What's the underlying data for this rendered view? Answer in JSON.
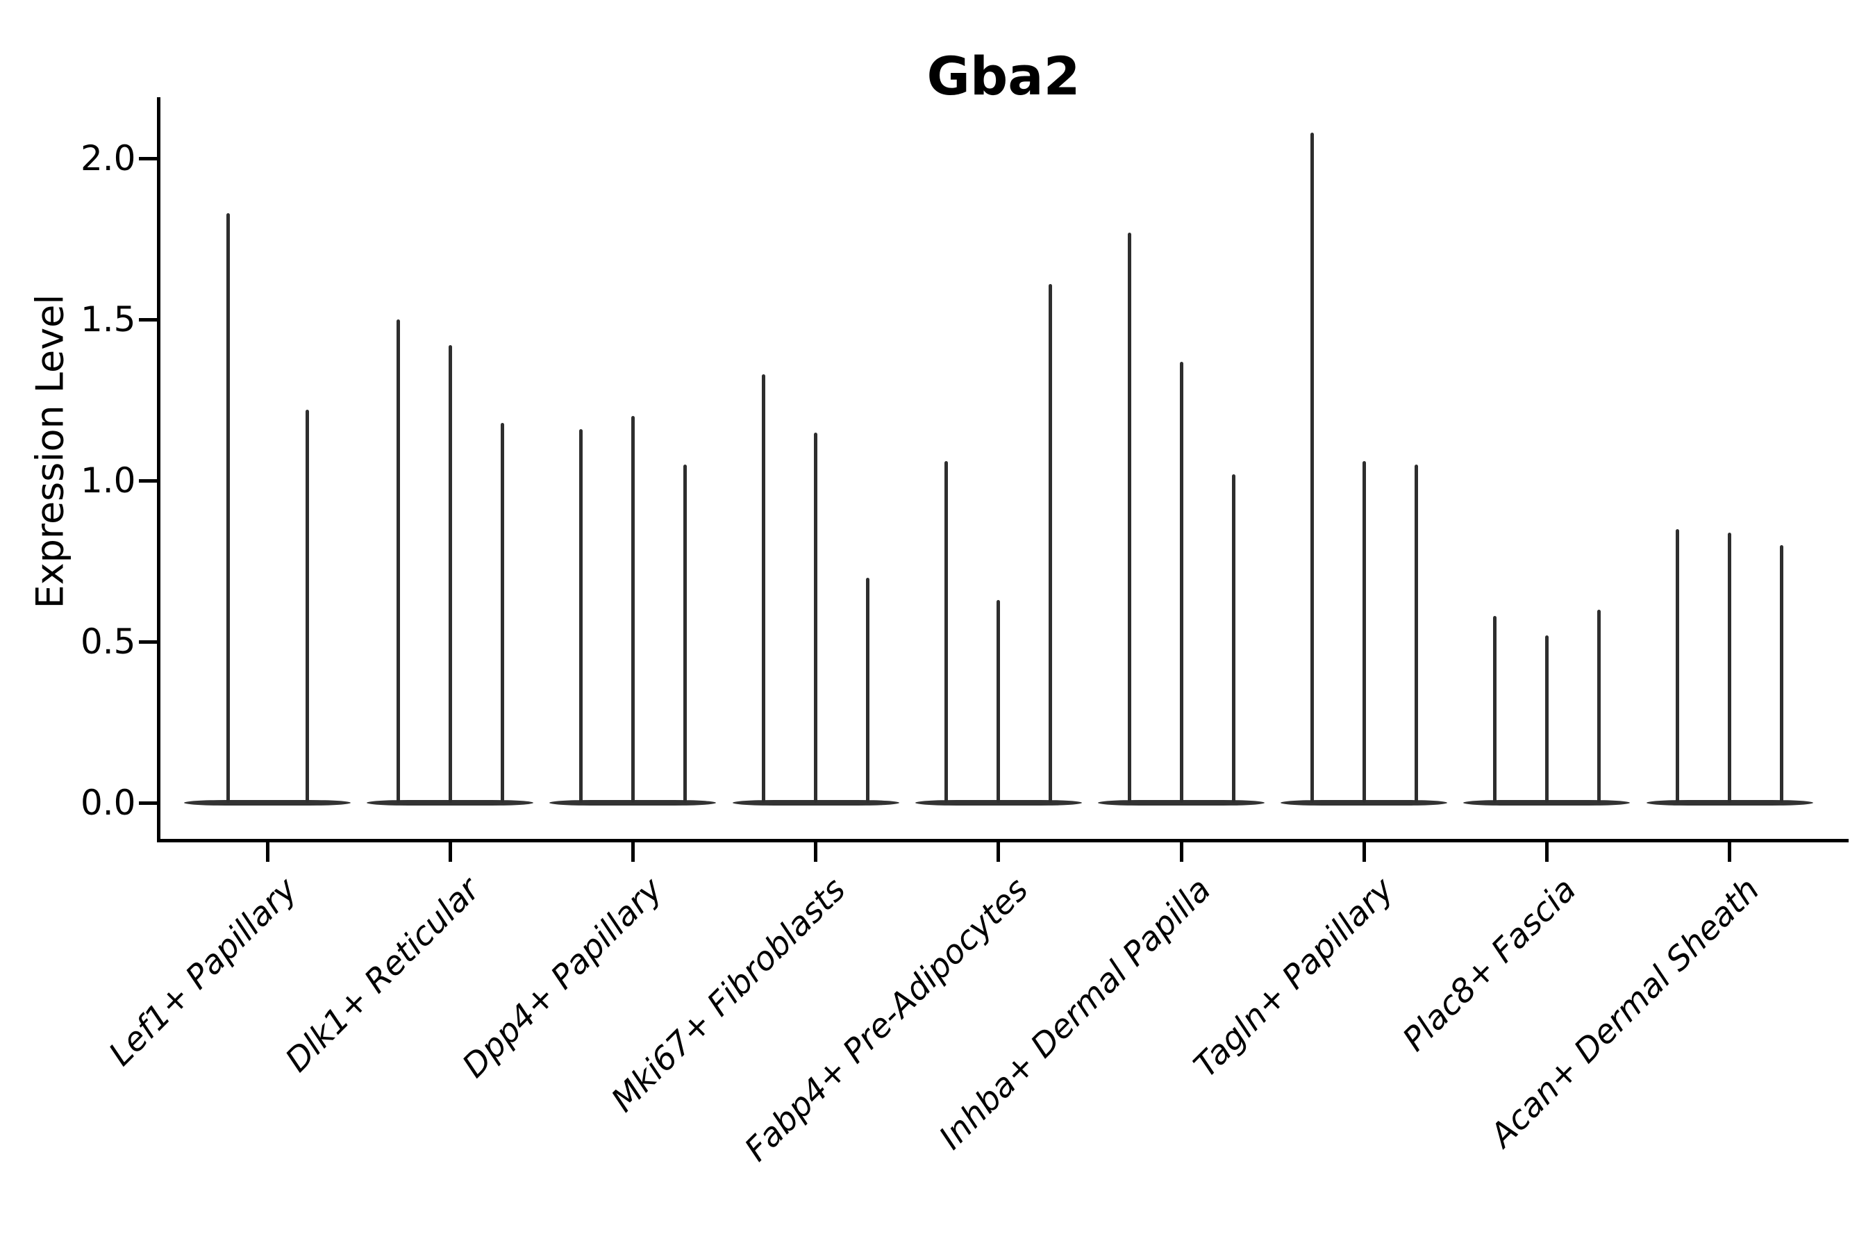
{
  "title": "Gba2",
  "ylabel": "Expression Level",
  "colors": {
    "violin": "#2e2e2e",
    "violin_base": "#333333",
    "axis": "#000000",
    "text": "#000000",
    "background": "#ffffff"
  },
  "chart_data": {
    "type": "violin",
    "title": "Gba2",
    "xlabel": "",
    "ylabel": "Expression Level",
    "ylim": [
      -0.11,
      2.19
    ],
    "yticks": [
      {
        "value": 0.0,
        "label": "0.0"
      },
      {
        "value": 0.5,
        "label": "0.5"
      },
      {
        "value": 1.0,
        "label": "1.0"
      },
      {
        "value": 1.5,
        "label": "1.5"
      },
      {
        "value": 2.0,
        "label": "2.0"
      }
    ],
    "grid": false,
    "legend": "none",
    "note": "Sparse expression violins: each violin is a wide flat base at 0 with a thin tail reaching the listed max expression value.",
    "categories": [
      "Lef1+ Papillary",
      "Dlk1+ Reticular",
      "Dpp4+ Papillary",
      "Mki67+ Fibroblasts",
      "Fabp4+ Pre-Adipocytes",
      "Inhba+ Dermal Papilla",
      "Tagln+ Papillary",
      "Plac8+ Fascia",
      "Acan+ Dermal Sheath"
    ],
    "groups": [
      {
        "label": "Lef1+ Papillary",
        "violin_max": [
          1.83,
          1.22
        ]
      },
      {
        "label": "Dlk1+ Reticular",
        "violin_max": [
          1.5,
          1.42,
          1.18
        ]
      },
      {
        "label": "Dpp4+ Papillary",
        "violin_max": [
          1.16,
          1.2,
          1.05
        ]
      },
      {
        "label": "Mki67+ Fibroblasts",
        "violin_max": [
          1.33,
          1.15,
          0.7
        ]
      },
      {
        "label": "Fabp4+ Pre-Adipocytes",
        "violin_max": [
          1.06,
          0.63,
          1.61
        ]
      },
      {
        "label": "Inhba+ Dermal Papilla",
        "violin_max": [
          1.77,
          1.37,
          1.02
        ]
      },
      {
        "label": "Tagln+ Papillary",
        "violin_max": [
          2.08,
          1.06,
          1.05
        ]
      },
      {
        "label": "Plac8+ Fascia",
        "violin_max": [
          0.58,
          0.52,
          0.6
        ]
      },
      {
        "label": "Acan+ Dermal Sheath",
        "violin_max": [
          0.85,
          0.84,
          0.8
        ]
      }
    ]
  }
}
